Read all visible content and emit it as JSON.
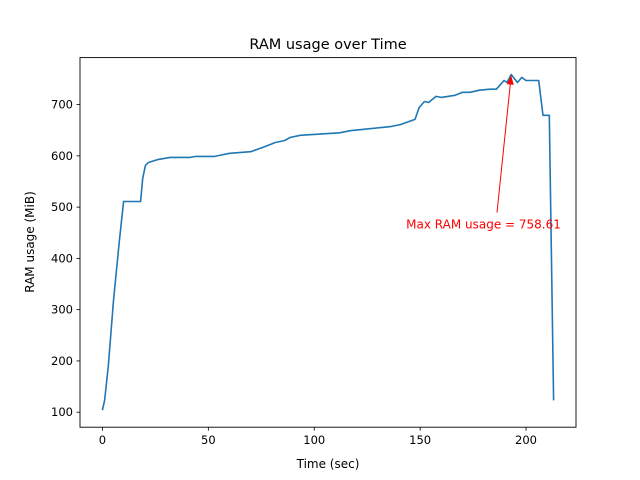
{
  "chart_data": {
    "type": "line",
    "title": "RAM usage over Time",
    "xlabel": "Time (sec)",
    "ylabel": "RAM usage (MiB)",
    "xlim": [
      -10.6,
      223.6
    ],
    "ylim": [
      70.8,
      791.6
    ],
    "xticks": [
      0,
      50,
      100,
      150,
      200
    ],
    "yticks": [
      100,
      200,
      300,
      400,
      500,
      600,
      700
    ],
    "grid": false,
    "series": [
      {
        "name": "RAM usage",
        "color": "#1f77b4",
        "x": [
          0,
          1,
          2.8,
          5.2,
          8,
          10,
          18,
          19,
          20.3,
          21.7,
          26.4,
          32,
          41.5,
          44,
          53,
          60,
          70,
          75.5,
          81.6,
          86,
          88.7,
          93.4,
          112,
          117,
          136,
          140.6,
          147.6,
          149.5,
          152,
          154,
          157.5,
          160,
          166.5,
          170,
          173.6,
          178,
          183,
          186,
          189.6,
          191,
          193,
          196,
          198,
          200,
          206,
          208,
          211,
          213
        ],
        "y": [
          104,
          123,
          192,
          318,
          435,
          511,
          511,
          556,
          581,
          587,
          593,
          597,
          597,
          599,
          599,
          605,
          608,
          616,
          626,
          630,
          636,
          640,
          645,
          649,
          657,
          661,
          671,
          694,
          706,
          704,
          716,
          714,
          718,
          724,
          724,
          728,
          730,
          730,
          747,
          743,
          758.61,
          743,
          753,
          747,
          747,
          679,
          679,
          123
        ]
      }
    ],
    "annotation": {
      "text": "Max RAM usage = 758.61",
      "color": "#ff0000",
      "point": [
        193,
        758.61
      ],
      "text_position": [
        143.4,
        468
      ]
    }
  }
}
